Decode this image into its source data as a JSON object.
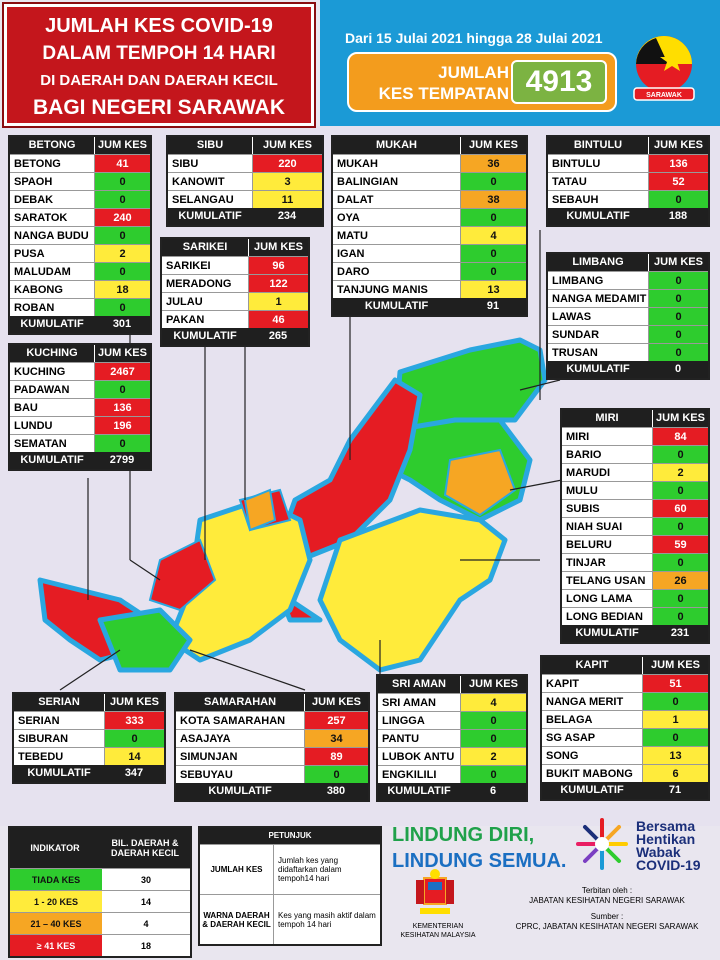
{
  "title": {
    "line1": "JUMLAH KES COVID-19",
    "line2": "DALAM TEMPOH 14 HARI",
    "line3": "DI DAERAH DAN DAERAH KECIL",
    "line4": "BAGI NEGERI SARAWAK"
  },
  "date_range": "Dari 15 Julai 2021 hingga 28 Julai 2021",
  "total": {
    "label_line1": "JUMLAH",
    "label_line2": "KES TEMPATAN",
    "value": "4913"
  },
  "logo_text": "SARAWAK",
  "header_value": "JUM KES",
  "cumulative_label": "KUMULATIF",
  "divisions": [
    {
      "name": "BETONG",
      "rows": [
        [
          "BETONG",
          "41",
          "red"
        ],
        [
          "SPAOH",
          "0",
          "grn"
        ],
        [
          "DEBAK",
          "0",
          "grn"
        ],
        [
          "SARATOK",
          "240",
          "red"
        ],
        [
          "NANGA BUDU",
          "0",
          "grn"
        ],
        [
          "PUSA",
          "2",
          "yel"
        ],
        [
          "MALUDAM",
          "0",
          "grn"
        ],
        [
          "KABONG",
          "18",
          "yel"
        ],
        [
          "ROBAN",
          "0",
          "grn"
        ]
      ],
      "total": "301"
    },
    {
      "name": "SIBU",
      "rows": [
        [
          "SIBU",
          "220",
          "red"
        ],
        [
          "KANOWIT",
          "3",
          "yel"
        ],
        [
          "SELANGAU",
          "11",
          "yel"
        ]
      ],
      "total": "234"
    },
    {
      "name": "MUKAH",
      "rows": [
        [
          "MUKAH",
          "36",
          "ora"
        ],
        [
          "BALINGIAN",
          "0",
          "grn"
        ],
        [
          "DALAT",
          "38",
          "ora"
        ],
        [
          "OYA",
          "0",
          "grn"
        ],
        [
          "MATU",
          "4",
          "yel"
        ],
        [
          "IGAN",
          "0",
          "grn"
        ],
        [
          "DARO",
          "0",
          "grn"
        ],
        [
          "TANJUNG MANIS",
          "13",
          "yel"
        ]
      ],
      "total": "91"
    },
    {
      "name": "BINTULU",
      "rows": [
        [
          "BINTULU",
          "136",
          "red"
        ],
        [
          "TATAU",
          "52",
          "red"
        ],
        [
          "SEBAUH",
          "0",
          "grn"
        ]
      ],
      "total": "188"
    },
    {
      "name": "SARIKEI",
      "rows": [
        [
          "SARIKEI",
          "96",
          "red"
        ],
        [
          "MERADONG",
          "122",
          "red"
        ],
        [
          "JULAU",
          "1",
          "yel"
        ],
        [
          "PAKAN",
          "46",
          "red"
        ]
      ],
      "total": "265"
    },
    {
      "name": "LIMBANG",
      "rows": [
        [
          "LIMBANG",
          "0",
          "grn"
        ],
        [
          "NANGA MEDAMIT",
          "0",
          "grn"
        ],
        [
          "LAWAS",
          "0",
          "grn"
        ],
        [
          "SUNDAR",
          "0",
          "grn"
        ],
        [
          "TRUSAN",
          "0",
          "grn"
        ]
      ],
      "total": "0"
    },
    {
      "name": "KUCHING",
      "rows": [
        [
          "KUCHING",
          "2467",
          "red"
        ],
        [
          "PADAWAN",
          "0",
          "grn"
        ],
        [
          "BAU",
          "136",
          "red"
        ],
        [
          "LUNDU",
          "196",
          "red"
        ],
        [
          "SEMATAN",
          "0",
          "grn"
        ]
      ],
      "total": "2799"
    },
    {
      "name": "MIRI",
      "rows": [
        [
          "MIRI",
          "84",
          "red"
        ],
        [
          "BARIO",
          "0",
          "grn"
        ],
        [
          "MARUDI",
          "2",
          "yel"
        ],
        [
          "MULU",
          "0",
          "grn"
        ],
        [
          "SUBIS",
          "60",
          "red"
        ],
        [
          "NIAH SUAI",
          "0",
          "grn"
        ],
        [
          "BELURU",
          "59",
          "red"
        ],
        [
          "TINJAR",
          "0",
          "grn"
        ],
        [
          "TELANG USAN",
          "26",
          "ora"
        ],
        [
          "LONG LAMA",
          "0",
          "grn"
        ],
        [
          "LONG BEDIAN",
          "0",
          "grn"
        ]
      ],
      "total": "231"
    },
    {
      "name": "KAPIT",
      "rows": [
        [
          "KAPIT",
          "51",
          "red"
        ],
        [
          "NANGA MERIT",
          "0",
          "grn"
        ],
        [
          "BELAGA",
          "1",
          "yel"
        ],
        [
          "SG ASAP",
          "0",
          "grn"
        ],
        [
          "SONG",
          "13",
          "yel"
        ],
        [
          "BUKIT MABONG",
          "6",
          "yel"
        ]
      ],
      "total": "71"
    },
    {
      "name": "SRI AMAN",
      "rows": [
        [
          "SRI AMAN",
          "4",
          "yel"
        ],
        [
          "LINGGA",
          "0",
          "grn"
        ],
        [
          "PANTU",
          "0",
          "grn"
        ],
        [
          "LUBOK ANTU",
          "2",
          "yel"
        ],
        [
          "ENGKILILI",
          "0",
          "grn"
        ]
      ],
      "total": "6"
    },
    {
      "name": "SERIAN",
      "rows": [
        [
          "SERIAN",
          "333",
          "red"
        ],
        [
          "SIBURAN",
          "0",
          "grn"
        ],
        [
          "TEBEDU",
          "14",
          "yel"
        ]
      ],
      "total": "347"
    },
    {
      "name": "SAMARAHAN",
      "rows": [
        [
          "KOTA SAMARAHAN",
          "257",
          "red"
        ],
        [
          "ASAJAYA",
          "34",
          "ora"
        ],
        [
          "SIMUNJAN",
          "89",
          "red"
        ],
        [
          "SEBUYAU",
          "0",
          "grn"
        ]
      ],
      "total": "380"
    }
  ],
  "legend": {
    "col1": "INDIKATOR",
    "col2": "BIL. DAERAH & DAERAH KECIL",
    "rows": [
      [
        "TIADA KES",
        "30",
        "grn"
      ],
      [
        "1 - 20 KES",
        "14",
        "yel"
      ],
      [
        "21 – 40 KES",
        "4",
        "ora"
      ],
      [
        "≥ 41 KES",
        "18",
        "red"
      ]
    ]
  },
  "petunjuk": {
    "title": "PETUNJUK",
    "rows": [
      [
        "JUMLAH KES",
        "Jumlah kes yang didaftarkan dalam tempoh14 hari"
      ],
      [
        "WARNA DAERAH & DAERAH KECIL",
        "Kes yang masih aktif dalam tempoh 14 hari"
      ]
    ]
  },
  "slogan": {
    "line1": "LINDUNG DIRI,",
    "line2": "LINDUNG SEMUA."
  },
  "campaign": {
    "l1": "Bersama",
    "l2": "Hentikan",
    "l3": "Wabak",
    "l4": "COVID-19"
  },
  "ministry": "KEMENTERIAN KESIHATAN MALAYSIA",
  "terbitan": {
    "label": "Terbitan oleh :",
    "value": "JABATAN KESIHATAN NEGERI SARAWAK"
  },
  "sumber": {
    "label": "Sumber :",
    "value": "CPRC, JABATAN KESIHATAN NEGERI SARAWAK"
  },
  "colors": {
    "red": "#e51c23",
    "yellow": "#ffeb3b",
    "orange": "#f6a623",
    "green": "#2ecc2e"
  }
}
